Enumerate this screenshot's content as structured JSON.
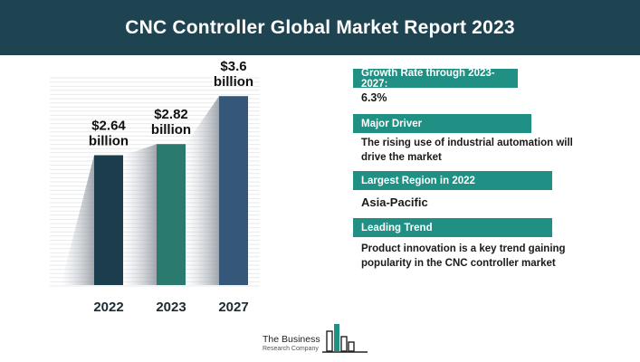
{
  "header": {
    "title": "CNC Controller Global Market Report 2023"
  },
  "chart_data": {
    "type": "bar",
    "categories": [
      "2022",
      "2023",
      "2027"
    ],
    "values": [
      2.64,
      2.82,
      3.6
    ],
    "data_labels": [
      {
        "line1": "$2.64",
        "line2": "billion"
      },
      {
        "line1": "$2.82",
        "line2": "billion"
      },
      {
        "line1": "$3.6",
        "line2": "billion"
      }
    ],
    "colors": [
      "#1b3d4d",
      "#2a7a70",
      "#35587a"
    ],
    "title": "",
    "xlabel": "",
    "ylabel": "",
    "grid": true
  },
  "info": {
    "growth": {
      "label": "Growth Rate through 2023-2027:",
      "value": "6.3%"
    },
    "driver": {
      "label": "Major Driver",
      "value": "The rising use of industrial automation will drive the market"
    },
    "region": {
      "label": "Largest Region in 2022",
      "value": "Asia-Pacific"
    },
    "trend": {
      "label": "Leading Trend",
      "value": "Product innovation is a key trend gaining popularity in the CNC controller market"
    }
  },
  "logo": {
    "line1": "The Business",
    "line2": "Research Company",
    "accent_color": "#1f9083"
  }
}
